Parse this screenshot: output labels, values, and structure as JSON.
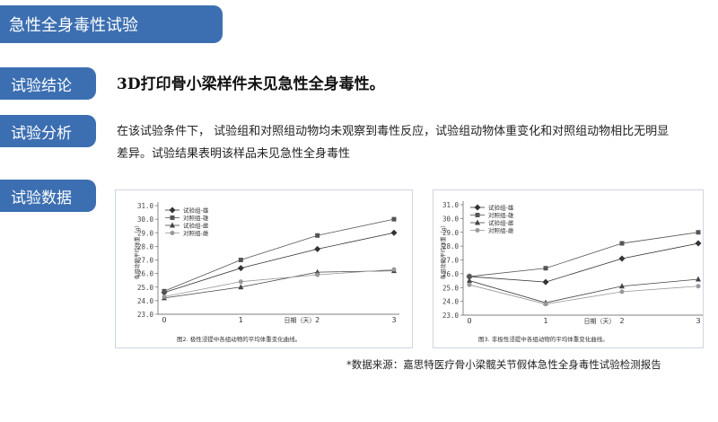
{
  "header": {
    "title": "急性全身毒性试验"
  },
  "sections": {
    "conclusion_label": "试验结论",
    "conclusion_text": "3D打印骨小梁样件未见急性全身毒性。",
    "analysis_label": "试验分析",
    "analysis_text": "在该试验条件下， 试验组和对照组动物均未观察到毒性反应，试验组动物体重变化和对照组动物相比无明显差异。试验结果表明该样品未见急性全身毒性",
    "data_label": "试验数据"
  },
  "source_note": "*数据来源：嘉思特医疗骨小梁髋关节假体急性全身毒性试验检测报告",
  "chart_data": [
    {
      "type": "line",
      "caption": "图2. 极性浸提中各组动物的平均体重变化曲线。",
      "xlabel": "日期（天）",
      "ylabel": "各组动物平均体重（g）",
      "x": [
        0,
        1,
        2,
        3
      ],
      "xlim": [
        0,
        3
      ],
      "ylim": [
        23.0,
        31.0
      ],
      "yticks": [
        "23.0",
        "24.0",
        "25.0",
        "26.0",
        "27.0",
        "28.0",
        "29.0",
        "30.0",
        "31.0"
      ],
      "legend_position": "top-left",
      "series": [
        {
          "name": "试验组-雄",
          "marker": "diamond",
          "values": [
            24.6,
            26.4,
            27.8,
            29.0
          ]
        },
        {
          "name": "对照组-雄",
          "marker": "square",
          "values": [
            24.7,
            27.0,
            28.8,
            30.0
          ]
        },
        {
          "name": "试验组-雌",
          "marker": "triangle",
          "values": [
            24.2,
            25.0,
            26.1,
            26.2
          ]
        },
        {
          "name": "对照组-雌",
          "marker": "circle",
          "values": [
            24.3,
            25.4,
            25.9,
            26.3
          ]
        }
      ],
      "colors": [
        "#333333",
        "#555555",
        "#444444",
        "#999999"
      ]
    },
    {
      "type": "line",
      "caption": "图3. 非极性浸提中各组动物的平均体重变化曲线。",
      "xlabel": "日期（天）",
      "ylabel": "各组动物平均体重（g）",
      "x": [
        0,
        1,
        2,
        3
      ],
      "xlim": [
        0,
        3
      ],
      "ylim": [
        23.0,
        31.0
      ],
      "yticks": [
        "23.0",
        "24.0",
        "25.0",
        "26.0",
        "27.0",
        "28.0",
        "29.0",
        "30.0",
        "31.0"
      ],
      "legend_position": "top-left",
      "series": [
        {
          "name": "试验组-雄",
          "marker": "diamond",
          "values": [
            25.8,
            25.4,
            27.1,
            28.2
          ]
        },
        {
          "name": "对照组-雄",
          "marker": "square",
          "values": [
            25.8,
            26.4,
            28.2,
            29.0
          ]
        },
        {
          "name": "试验组-雌",
          "marker": "triangle",
          "values": [
            25.5,
            23.9,
            25.1,
            25.6
          ]
        },
        {
          "name": "对照组-雌",
          "marker": "circle",
          "values": [
            25.2,
            23.8,
            24.7,
            25.1
          ]
        }
      ],
      "colors": [
        "#333333",
        "#555555",
        "#444444",
        "#999999"
      ]
    }
  ]
}
